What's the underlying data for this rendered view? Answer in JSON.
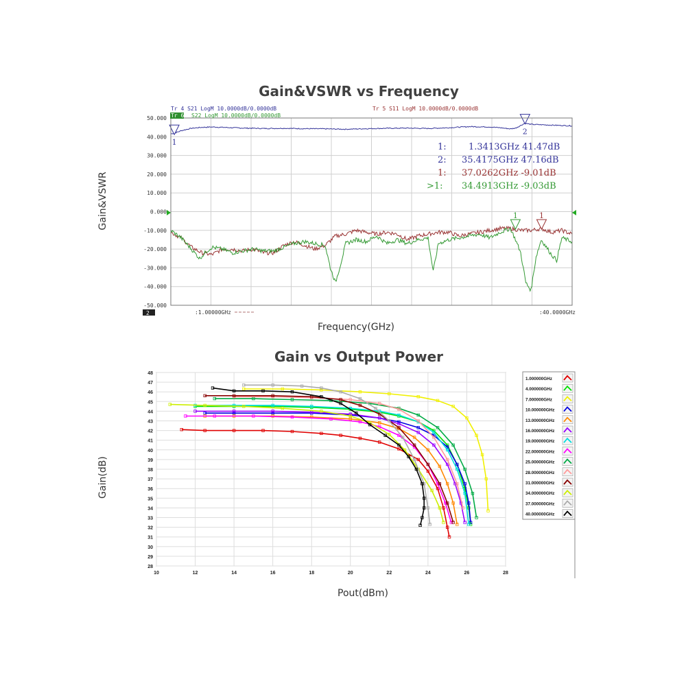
{
  "chart_data": [
    {
      "type": "line",
      "title": "Gain&VSWR vs Frequency",
      "xlabel": "Frequency(GHz)",
      "ylabel": "Gain&VSWR",
      "xlim": [
        1,
        40
      ],
      "ylim": [
        -50,
        50
      ],
      "y_ticks": [
        "50.000",
        "40.000",
        "30.000",
        "20.000",
        "10.000",
        "0.000",
        "-10.000",
        "-20.000",
        "-30.000",
        "-40.000",
        "-50.000"
      ],
      "x_start_label": ":1.00000GHz",
      "x_stop_label": ":40.0000GHz",
      "channel_badge": "2",
      "grid": true,
      "trace_headers": {
        "tr4": "Tr 4  S21 LogM 10.0000dB/0.0000dB",
        "tr6_tag": "Tr 6",
        "tr6": "S22 LogM 10.0000dB/0.0000dB",
        "tr5": "Tr 5  S11 LogM 10.0000dB/0.0000dB"
      },
      "markers": [
        {
          "id": "1:",
          "text": "1.3413GHz 41.47dB",
          "color": "#333399"
        },
        {
          "id": "2:",
          "text": "35.4175GHz 47.16dB",
          "color": "#333399"
        },
        {
          "id": "1:",
          "text": "37.0262GHz -9.01dB",
          "color": "#993333"
        },
        {
          "id": ">1:",
          "text": "34.4913GHz -9.03dB",
          "color": "#339933"
        }
      ],
      "marker_points": [
        {
          "label": "1",
          "x": 1.34,
          "y": 41.5,
          "color": "#333399"
        },
        {
          "label": "2",
          "x": 35.42,
          "y": 47.2,
          "color": "#333399"
        },
        {
          "label": "1",
          "x": 34.49,
          "y": -9.0,
          "color": "#339933"
        },
        {
          "label": "1",
          "x": 37.03,
          "y": -9.0,
          "color": "#993333"
        }
      ],
      "series": [
        {
          "name": "S21",
          "color": "#333399",
          "x": [
            1,
            1.5,
            2,
            3,
            4,
            5,
            6,
            8,
            10,
            12,
            14,
            16,
            18,
            20,
            22,
            24,
            26,
            28,
            30,
            32,
            33,
            34,
            34.5,
            35,
            35.4,
            36,
            37,
            38,
            39,
            40
          ],
          "y": [
            41.5,
            42.2,
            43.2,
            44.5,
            45.0,
            45.2,
            45.0,
            44.6,
            44.4,
            44.5,
            44.3,
            44.2,
            44.0,
            44.3,
            44.5,
            44.6,
            44.4,
            44.8,
            45.4,
            45.2,
            44.8,
            44.2,
            44.6,
            46.0,
            47.2,
            46.6,
            46.4,
            46.2,
            46.0,
            45.8
          ]
        },
        {
          "name": "S11",
          "color": "#993333",
          "x": [
            1,
            2,
            3,
            4,
            5,
            6,
            7,
            8,
            9,
            10,
            11,
            12,
            13,
            14,
            15,
            16,
            17,
            18,
            19,
            20,
            21,
            22,
            23,
            24,
            25,
            26,
            27,
            28,
            29,
            30,
            31,
            32,
            33,
            34,
            35,
            36,
            37,
            38,
            39,
            40
          ],
          "y": [
            -11,
            -14,
            -19,
            -22,
            -23,
            -20,
            -20,
            -21,
            -20,
            -22,
            -22,
            -18,
            -16,
            -18,
            -20,
            -18,
            -13,
            -12,
            -10,
            -11,
            -12,
            -11,
            -12,
            -15,
            -13,
            -12,
            -11,
            -11,
            -13,
            -12,
            -11,
            -10,
            -9,
            -9,
            -10,
            -10,
            -9,
            -11,
            -10,
            -12
          ]
        },
        {
          "name": "S22",
          "color": "#339933",
          "x": [
            1,
            2,
            3,
            3.8,
            4.5,
            5,
            6,
            7,
            8,
            9,
            10,
            11,
            12,
            13,
            14,
            15,
            16,
            16.5,
            17,
            17.5,
            18,
            19,
            20,
            21,
            22,
            23,
            24,
            25,
            26,
            26.5,
            27,
            28,
            29,
            30,
            31,
            32,
            33,
            34,
            34.5,
            35,
            35.5,
            36,
            36.5,
            37,
            38,
            38.5,
            39,
            40
          ],
          "y": [
            -10,
            -14,
            -20,
            -25,
            -21,
            -19,
            -20,
            -22,
            -21,
            -20,
            -21,
            -21,
            -19,
            -17,
            -16,
            -17,
            -18,
            -30,
            -38,
            -28,
            -17,
            -15,
            -16,
            -13,
            -17,
            -15,
            -17,
            -15,
            -14,
            -32,
            -17,
            -15,
            -14,
            -13,
            -12,
            -14,
            -11,
            -9,
            -15,
            -22,
            -38,
            -42,
            -24,
            -15,
            -23,
            -26,
            -14,
            -16
          ]
        }
      ]
    },
    {
      "type": "line",
      "title": "Gain vs Output Power",
      "xlabel": "Pout(dBm)",
      "ylabel": "Gain(dB)",
      "xlim": [
        10,
        28
      ],
      "ylim": [
        28,
        48
      ],
      "x_ticks": [
        10,
        12,
        14,
        16,
        18,
        20,
        22,
        24,
        26,
        28
      ],
      "y_ticks": [
        28,
        29,
        30,
        31,
        32,
        33,
        34,
        35,
        36,
        37,
        38,
        39,
        40,
        41,
        42,
        43,
        44,
        45,
        46,
        47,
        48
      ],
      "grid": true,
      "legend": "right",
      "series": [
        {
          "name": "1.000000GHz",
          "color": "#e00000",
          "x": [
            11.3,
            12.5,
            14,
            15.5,
            17,
            18.5,
            19.5,
            20.5,
            21.5,
            22.5,
            23.5,
            24,
            24.5,
            24.8,
            25.0,
            25.1
          ],
          "y": [
            42.1,
            42.0,
            42.0,
            42.0,
            41.9,
            41.7,
            41.5,
            41.2,
            40.8,
            40.1,
            39.0,
            37.8,
            36.0,
            34.0,
            32.0,
            31.0
          ]
        },
        {
          "name": "4.000000GHz",
          "color": "#00e000",
          "x": [
            12,
            14,
            16,
            18,
            20,
            21.5,
            22.5,
            23.5,
            24.3,
            25,
            25.5,
            25.9,
            26.1,
            26.2
          ],
          "y": [
            44.5,
            44.5,
            44.5,
            44.4,
            44.2,
            43.9,
            43.5,
            42.9,
            42.0,
            40.5,
            38.5,
            36.0,
            34.0,
            32.3
          ]
        },
        {
          "name": "7.000000GHz",
          "color": "#f0f000",
          "x": [
            14.5,
            16.5,
            18.5,
            20.5,
            22,
            23.5,
            24.5,
            25.3,
            26,
            26.5,
            26.8,
            27.0,
            27.1
          ],
          "y": [
            46.3,
            46.3,
            46.2,
            46.0,
            45.8,
            45.5,
            45.1,
            44.5,
            43.3,
            41.5,
            39.5,
            37.0,
            33.7
          ]
        },
        {
          "name": "10.000000GHz",
          "color": "#0000e0",
          "x": [
            12.5,
            14,
            16,
            18,
            20,
            21.5,
            22.5,
            23.5,
            24.3,
            25,
            25.5,
            25.9,
            26.1,
            26.2
          ],
          "y": [
            43.8,
            43.8,
            43.8,
            43.8,
            43.6,
            43.3,
            42.9,
            42.3,
            41.5,
            40.3,
            38.5,
            36.5,
            34.5,
            32.5
          ]
        },
        {
          "name": "13.000000GHz",
          "color": "#ff8800",
          "x": [
            12.5,
            14,
            16,
            18,
            20,
            21.5,
            22.5,
            23.3,
            24,
            24.6,
            25,
            25.3,
            25.5
          ],
          "y": [
            43.5,
            43.5,
            43.5,
            43.4,
            43.2,
            42.8,
            42.2,
            41.3,
            40.0,
            38.3,
            36.5,
            34.5,
            32.3
          ]
        },
        {
          "name": "16.000000GHz",
          "color": "#9900ff",
          "x": [
            12,
            14,
            16,
            18,
            20,
            21.5,
            22.5,
            23.5,
            24.3,
            25,
            25.4,
            25.7,
            25.9
          ],
          "y": [
            44.0,
            44.0,
            44.0,
            43.9,
            43.7,
            43.3,
            42.7,
            41.8,
            40.5,
            38.5,
            36.5,
            34.5,
            32.5
          ]
        },
        {
          "name": "19.000000GHz",
          "color": "#00dddd",
          "x": [
            12,
            14,
            16,
            18,
            20,
            21.5,
            22.5,
            23.5,
            24.3,
            25,
            25.5,
            25.9,
            26.1
          ],
          "y": [
            44.6,
            44.6,
            44.6,
            44.5,
            44.3,
            44.0,
            43.6,
            42.9,
            41.8,
            40.0,
            38.0,
            35.5,
            32.3
          ]
        },
        {
          "name": "22.000000GHz",
          "color": "#ff00ff",
          "x": [
            11.5,
            13,
            15,
            17,
            19,
            20.5,
            21.5,
            22.5,
            23.3,
            24,
            24.5,
            24.9,
            25.2
          ],
          "y": [
            43.5,
            43.5,
            43.5,
            43.4,
            43.2,
            42.9,
            42.4,
            41.5,
            40.3,
            38.5,
            36.5,
            34.5,
            32.5
          ]
        },
        {
          "name": "25.000000GHz",
          "color": "#00aa44",
          "x": [
            13,
            15,
            17,
            19,
            21,
            22.5,
            23.5,
            24.5,
            25.3,
            25.9,
            26.3,
            26.5
          ],
          "y": [
            45.3,
            45.3,
            45.2,
            45.1,
            44.8,
            44.3,
            43.6,
            42.3,
            40.5,
            38.0,
            35.5,
            33.0
          ]
        },
        {
          "name": "28.000000GHz",
          "color": "#ff9999",
          "x": [
            14,
            16,
            18,
            20,
            21.5,
            22.5,
            23.5,
            24.3,
            25,
            25.5,
            25.8
          ],
          "y": [
            45.5,
            45.5,
            45.4,
            45.2,
            44.8,
            44.2,
            43.0,
            41.3,
            39.0,
            36.5,
            34.0
          ]
        },
        {
          "name": "31.000000GHz",
          "color": "#880000",
          "x": [
            12.5,
            14,
            16,
            18,
            19.5,
            20.5,
            21.5,
            22.5,
            23.3,
            24,
            24.6,
            25,
            25.3
          ],
          "y": [
            45.6,
            45.6,
            45.6,
            45.5,
            45.2,
            44.6,
            43.7,
            42.3,
            40.5,
            38.5,
            36.5,
            34.5,
            32.5
          ]
        },
        {
          "name": "34.000000GHz",
          "color": "#ccee00",
          "x": [
            10.7,
            12.5,
            14.5,
            16.5,
            18.5,
            20,
            21,
            22,
            22.8,
            23.5,
            24.2,
            24.6,
            24.8
          ],
          "y": [
            44.7,
            44.6,
            44.5,
            44.3,
            44.0,
            43.5,
            42.8,
            41.6,
            40.0,
            38.0,
            35.8,
            34.0,
            32.5
          ]
        },
        {
          "name": "37.000000GHz",
          "color": "#aaaaaa",
          "x": [
            14.5,
            16,
            17.5,
            18.5,
            19.5,
            20.5,
            21.3,
            22,
            22.7,
            23.3,
            23.8,
            24.0,
            24.1
          ],
          "y": [
            46.7,
            46.7,
            46.6,
            46.4,
            46.0,
            45.3,
            44.3,
            43.0,
            41.3,
            39.0,
            36.5,
            34.0,
            32.3
          ]
        },
        {
          "name": "40.000000GHz",
          "color": "#000000",
          "x": [
            12.9,
            14,
            15.5,
            17,
            18.5,
            19.5,
            20.3,
            21,
            21.8,
            22.5,
            23,
            23.4,
            23.7,
            23.8,
            23.8,
            23.7,
            23.6
          ],
          "y": [
            46.4,
            46.1,
            46.1,
            46.0,
            45.5,
            44.8,
            43.8,
            42.6,
            41.5,
            40.5,
            39.3,
            38.0,
            36.5,
            35.0,
            34.0,
            33.0,
            32.2
          ]
        }
      ]
    }
  ]
}
